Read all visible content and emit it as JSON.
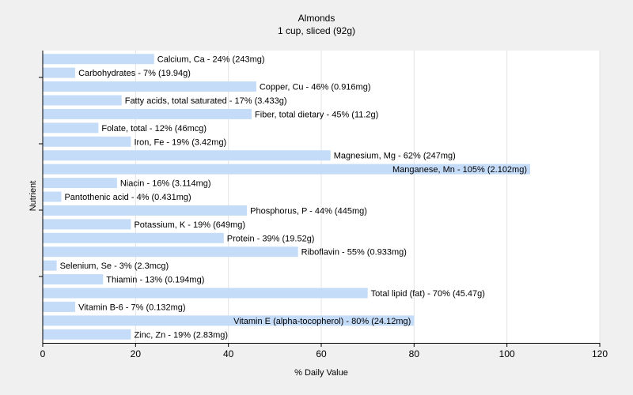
{
  "chart_data": {
    "type": "bar",
    "orientation": "horizontal",
    "title": "Almonds",
    "subtitle": "1 cup, sliced (92g)",
    "xlabel": "% Daily Value",
    "ylabel": "Nutrient",
    "xlim": [
      0,
      120
    ],
    "xticks": [
      0,
      20,
      40,
      60,
      80,
      100,
      120
    ],
    "grid": true,
    "bar_color": "#c5dcf8",
    "categories": [
      "Calcium, Ca",
      "Carbohydrates",
      "Copper, Cu",
      "Fatty acids, total saturated",
      "Fiber, total dietary",
      "Folate, total",
      "Iron, Fe",
      "Magnesium, Mg",
      "Manganese, Mn",
      "Niacin",
      "Pantothenic acid",
      "Phosphorus, P",
      "Potassium, K",
      "Protein",
      "Riboflavin",
      "Selenium, Se",
      "Thiamin",
      "Total lipid (fat)",
      "Vitamin B-6",
      "Vitamin E (alpha-tocopherol)",
      "Zinc, Zn"
    ],
    "values": [
      24,
      7,
      46,
      17,
      45,
      12,
      19,
      62,
      105,
      16,
      4,
      44,
      19,
      39,
      55,
      3,
      13,
      70,
      7,
      80,
      19
    ],
    "labels": [
      "Calcium, Ca - 24% (243mg)",
      "Carbohydrates - 7% (19.94g)",
      "Copper, Cu - 46% (0.916mg)",
      "Fatty acids, total saturated - 17% (3.433g)",
      "Fiber, total dietary - 45% (11.2g)",
      "Folate, total - 12% (46mcg)",
      "Iron, Fe - 19% (3.42mg)",
      "Magnesium, Mg - 62% (247mg)",
      "Manganese, Mn - 105% (2.102mg)",
      "Niacin - 16% (3.114mg)",
      "Pantothenic acid - 4% (0.431mg)",
      "Phosphorus, P - 44% (445mg)",
      "Potassium, K - 19% (649mg)",
      "Protein - 39% (19.52g)",
      "Riboflavin - 55% (0.933mg)",
      "Selenium, Se - 3% (2.3mcg)",
      "Thiamin - 13% (0.194mg)",
      "Total lipid (fat) - 70% (45.47g)",
      "Vitamin B-6 - 7% (0.132mg)",
      "Vitamin E (alpha-tocopherol) - 80% (24.12mg)",
      "Zinc, Zn - 19% (2.83mg)"
    ]
  }
}
